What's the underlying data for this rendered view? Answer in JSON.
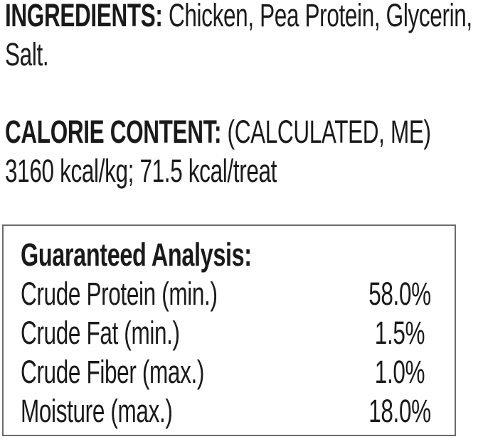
{
  "colors": {
    "background": "#ffffff",
    "text": "#1a1a1a",
    "box_border": "#6b6b6b"
  },
  "ingredients": {
    "heading": "INGREDIENTS:",
    "line1_rest": " Chicken, Pea Protein, Glycerin,",
    "line2": "Salt."
  },
  "calorie_content": {
    "heading": "CALORIE CONTENT:",
    "line1_rest": " (CALCULATED, ME)",
    "line2": "3160 kcal/kg; 71.5 kcal/treat"
  },
  "guaranteed_analysis": {
    "title": "Guaranteed Analysis:",
    "rows": [
      {
        "label": "Crude Protein (min.)",
        "value": "58.0%"
      },
      {
        "label": "Crude Fat (min.)",
        "value": "1.5%"
      },
      {
        "label": "Crude Fiber (max.)",
        "value": "1.0%"
      },
      {
        "label": "Moisture (max.)",
        "value": "18.0%"
      }
    ]
  }
}
